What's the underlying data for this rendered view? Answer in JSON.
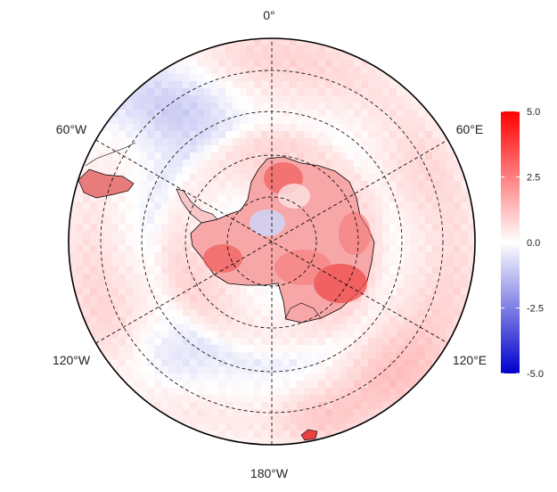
{
  "map": {
    "projection": "south-polar-stereographic",
    "longitude_labels": {
      "top": "0°",
      "upper_left": "60°W",
      "upper_right": "60°E",
      "lower_left": "120°W",
      "lower_right": "120°E",
      "bottom": "180°W"
    },
    "graticule": "dashed",
    "colors": {
      "negative": "#0000cc",
      "zero": "#ffffff",
      "positive": "#ff0000",
      "coastline": "#000000",
      "graticule": "#000000",
      "boundary": "#000000"
    }
  },
  "colorbar": {
    "min": -5,
    "max": 5,
    "ticks": [
      "5.0",
      "2.5",
      "0.0",
      "-2.5",
      "-5.0"
    ],
    "gradient_top": "#ff0000",
    "gradient_mid": "#ffffff",
    "gradient_bottom": "#0000cc"
  }
}
